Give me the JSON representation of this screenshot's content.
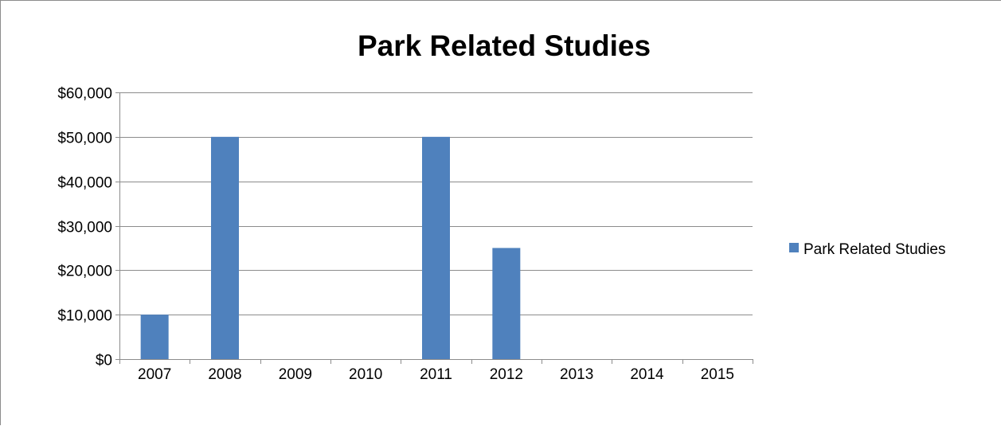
{
  "chart_data": {
    "type": "bar",
    "title": "Park Related Studies",
    "xlabel": "",
    "ylabel": "",
    "categories": [
      "2007",
      "2008",
      "2009",
      "2010",
      "2011",
      "2012",
      "2013",
      "2014",
      "2015"
    ],
    "series": [
      {
        "name": "Park Related Studies",
        "values": [
          10000,
          50000,
          0,
          0,
          50000,
          25000,
          0,
          0,
          0
        ],
        "color": "#4f81bd"
      }
    ],
    "ylim": [
      0,
      60000
    ],
    "y_ticks": [
      0,
      10000,
      20000,
      30000,
      40000,
      50000,
      60000
    ],
    "y_tick_labels": [
      "$0",
      "$10,000",
      "$20,000",
      "$30,000",
      "$40,000",
      "$50,000",
      "$60,000"
    ],
    "grid": true,
    "legend_position": "right"
  }
}
